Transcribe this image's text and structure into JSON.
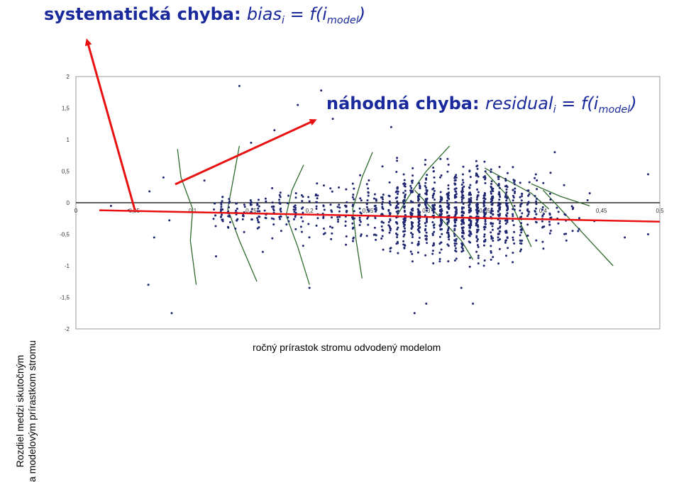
{
  "title_top": {
    "prefix": "systematická chyba:",
    "formula_a": "bias",
    "formula_sub": "i",
    "formula_b": " = f(i",
    "formula_sub2": "model",
    "formula_c": ")"
  },
  "title_mid": {
    "prefix": "náhodná chyba:",
    "formula_a": "residual",
    "formula_sub": "i",
    "formula_b": " = f(i",
    "formula_sub2": "model",
    "formula_c": ")"
  },
  "colors": {
    "points": "#1f2670",
    "trend": "#e81010",
    "arrow": "#e81010",
    "curves": "#2e6b2e",
    "title": "#1a2a9c"
  },
  "chart_data": {
    "type": "scatter",
    "xlabel": "ročný prírastok stromu odvodený modelom",
    "ylabel_line1": "Rozdiel medzi skutočným",
    "ylabel_line2": "a modelovým prírastkom stromu",
    "xlim": [
      0,
      0.5
    ],
    "ylim": [
      -2,
      2
    ],
    "yticks": [
      "2",
      "1,5",
      "1",
      "0,5",
      "0",
      "-0,5",
      "-1",
      "-1,5",
      "-2"
    ],
    "yticks_values": [
      2,
      1.5,
      1,
      0.5,
      0,
      -0.5,
      -1,
      -1.5,
      -2
    ],
    "xticks": [
      "0",
      "0,05",
      "0,1",
      "0,15",
      "0,2",
      "0,25",
      "0,3",
      "0,35",
      "0,4",
      "0,45",
      "0,5"
    ],
    "xticks_values": [
      0,
      0.05,
      0.1,
      0.15,
      0.2,
      0.25,
      0.3,
      0.35,
      0.4,
      0.45,
      0.5
    ],
    "trend": {
      "x": [
        0.02,
        0.5
      ],
      "y": [
        -0.12,
        -0.3
      ]
    },
    "residual_curves": [
      {
        "x": [
          0.087,
          0.09,
          0.1,
          0.098,
          0.103
        ],
        "y": [
          0.85,
          0.4,
          -0.1,
          -0.6,
          -1.3
        ]
      },
      {
        "x": [
          0.14,
          0.135,
          0.13,
          0.14,
          0.155
        ],
        "y": [
          0.9,
          0.4,
          -0.1,
          -0.6,
          -1.25
        ]
      },
      {
        "x": [
          0.195,
          0.185,
          0.18,
          0.19,
          0.2
        ],
        "y": [
          0.6,
          0.2,
          -0.2,
          -0.7,
          -1.3
        ]
      },
      {
        "x": [
          0.254,
          0.245,
          0.237,
          0.24,
          0.245
        ],
        "y": [
          0.8,
          0.4,
          -0.1,
          -0.6,
          -1.2
        ]
      },
      {
        "x": [
          0.32,
          0.3,
          0.285,
          0.275
        ],
        "y": [
          0.9,
          0.5,
          0.1,
          -0.2
        ]
      },
      {
        "x": [
          0.35,
          0.37,
          0.38,
          0.39
        ],
        "y": [
          0.5,
          0.1,
          -0.3,
          -0.7
        ]
      },
      {
        "x": [
          0.4,
          0.42,
          0.44,
          0.46
        ],
        "y": [
          0.2,
          -0.2,
          -0.6,
          -1.0
        ]
      },
      {
        "x": [
          0.29,
          0.31,
          0.33,
          0.34
        ],
        "y": [
          0.2,
          -0.2,
          -0.6,
          -0.9
        ]
      },
      {
        "x": [
          0.35,
          0.37,
          0.39,
          0.405
        ],
        "y": [
          0.55,
          0.35,
          0.15,
          -0.1
        ]
      },
      {
        "x": [
          0.39,
          0.415,
          0.44
        ],
        "y": [
          0.3,
          0.1,
          -0.05
        ]
      }
    ],
    "scatter": {
      "seed": 7,
      "count": 1300,
      "outliers": [
        {
          "x": 0.03,
          "y": -0.05
        },
        {
          "x": 0.045,
          "y": -0.12
        },
        {
          "x": 0.063,
          "y": 0.18
        },
        {
          "x": 0.067,
          "y": -0.55
        },
        {
          "x": 0.075,
          "y": 0.4
        },
        {
          "x": 0.08,
          "y": -0.28
        },
        {
          "x": 0.062,
          "y": -1.3
        },
        {
          "x": 0.082,
          "y": -1.75
        },
        {
          "x": 0.14,
          "y": 1.85
        },
        {
          "x": 0.16,
          "y": -0.78
        },
        {
          "x": 0.19,
          "y": 1.55
        },
        {
          "x": 0.2,
          "y": -1.35
        },
        {
          "x": 0.21,
          "y": 1.78
        },
        {
          "x": 0.22,
          "y": 1.33
        },
        {
          "x": 0.27,
          "y": 1.2
        },
        {
          "x": 0.29,
          "y": -1.75
        },
        {
          "x": 0.3,
          "y": -1.6
        },
        {
          "x": 0.41,
          "y": 0.8
        },
        {
          "x": 0.42,
          "y": -0.6
        },
        {
          "x": 0.47,
          "y": -0.55
        },
        {
          "x": 0.49,
          "y": -0.5
        },
        {
          "x": 0.49,
          "y": 0.45
        },
        {
          "x": 0.44,
          "y": 0.15
        },
        {
          "x": 0.43,
          "y": -0.45
        },
        {
          "x": 0.15,
          "y": 0.95
        },
        {
          "x": 0.11,
          "y": 0.35
        },
        {
          "x": 0.12,
          "y": -0.85
        },
        {
          "x": 0.17,
          "y": 1.15
        },
        {
          "x": 0.33,
          "y": -1.35
        },
        {
          "x": 0.34,
          "y": -1.6
        }
      ]
    }
  }
}
